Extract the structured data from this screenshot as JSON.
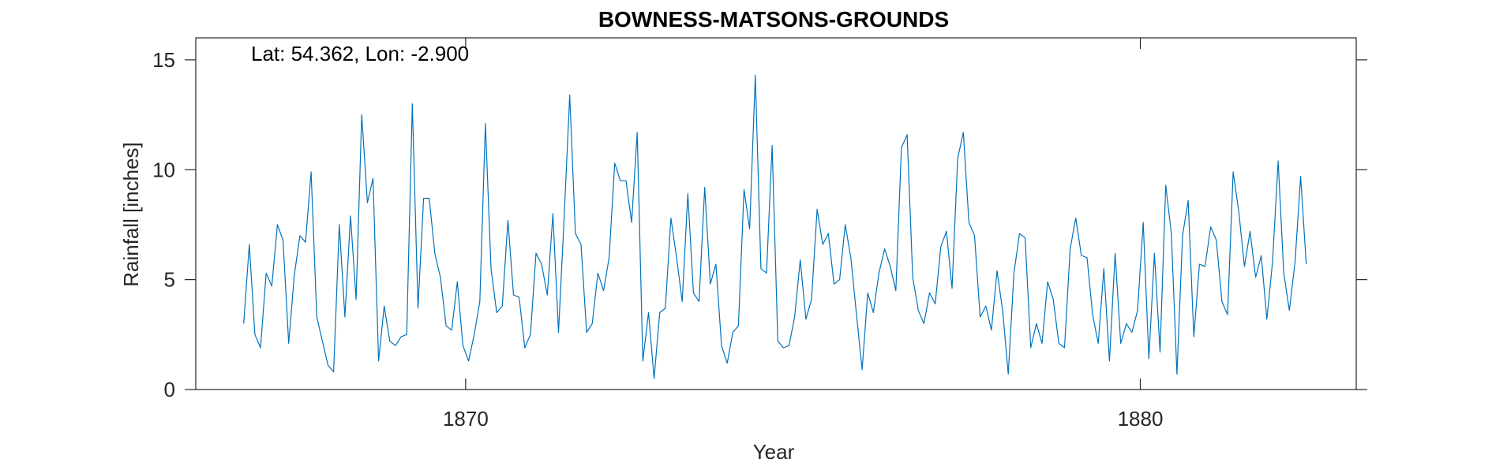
{
  "chart_data": {
    "type": "line",
    "title": "BOWNESS-MATSONS-GROUNDS",
    "annotation": "Lat: 54.362, Lon: -2.900",
    "xlabel": "Year",
    "ylabel": "Rainfall [inches]",
    "xlim": [
      1866.0,
      1883.2
    ],
    "ylim": [
      0,
      16.0
    ],
    "x_ticks": [
      1870,
      1880
    ],
    "y_ticks": [
      0,
      5,
      10,
      15
    ],
    "grid": false,
    "line_color": "#0072BD",
    "x_start": 1866.71,
    "x_step": 0.08333,
    "series": [
      {
        "values": [
          3.0,
          6.6,
          2.5,
          1.9,
          5.3,
          4.7,
          7.5,
          6.8,
          2.1,
          5.2,
          7.0,
          6.7,
          9.9,
          3.3,
          2.2,
          1.1,
          0.8,
          7.5,
          3.3,
          7.9,
          4.1,
          12.5,
          8.5,
          9.6,
          1.3,
          3.8,
          2.2,
          2.0,
          2.4,
          2.5,
          13.0,
          3.7,
          8.7,
          8.7,
          6.2,
          5.1,
          2.9,
          2.7,
          4.9,
          2.0,
          1.3,
          2.5,
          4.0,
          12.1,
          5.5,
          3.5,
          3.8,
          7.7,
          4.3,
          4.2,
          1.9,
          2.5,
          6.2,
          5.7,
          4.3,
          8.0,
          2.6,
          7.8,
          13.4,
          7.1,
          6.6,
          2.6,
          3.0,
          5.3,
          4.5,
          6.0,
          10.3,
          9.5,
          9.5,
          7.6,
          11.7,
          1.3,
          3.5,
          0.5,
          3.5,
          3.7,
          7.8,
          6.0,
          4.0,
          8.9,
          4.4,
          4.0,
          9.2,
          4.8,
          5.7,
          2.0,
          1.2,
          2.6,
          2.9,
          9.1,
          7.3,
          14.3,
          5.5,
          5.3,
          11.1,
          2.2,
          1.9,
          2.0,
          3.3,
          5.9,
          3.2,
          4.1,
          8.2,
          6.6,
          7.1,
          4.8,
          5.0,
          7.5,
          6.0,
          3.4,
          0.9,
          4.4,
          3.5,
          5.3,
          6.4,
          5.6,
          4.5,
          11.0,
          11.6,
          5.1,
          3.6,
          3.0,
          4.4,
          3.9,
          6.5,
          7.2,
          4.6,
          10.5,
          11.7,
          7.6,
          7.0,
          3.3,
          3.8,
          2.7,
          5.4,
          3.6,
          0.7,
          5.3,
          7.1,
          6.9,
          1.9,
          3.0,
          2.1,
          4.9,
          4.1,
          2.1,
          1.9,
          6.4,
          7.8,
          6.1,
          6.0,
          3.4,
          2.1,
          5.5,
          1.3,
          6.2,
          2.1,
          3.0,
          2.6,
          3.6,
          7.6,
          1.4,
          6.2,
          1.7,
          9.3,
          7.1,
          0.7,
          7.0,
          8.6,
          2.4,
          5.7,
          5.6,
          7.4,
          6.8,
          4.0,
          3.4,
          9.9,
          8.1,
          5.6,
          7.2,
          5.1,
          6.1,
          3.2,
          5.8,
          10.4,
          5.3,
          3.6,
          5.8,
          9.7,
          5.7
        ]
      }
    ]
  }
}
